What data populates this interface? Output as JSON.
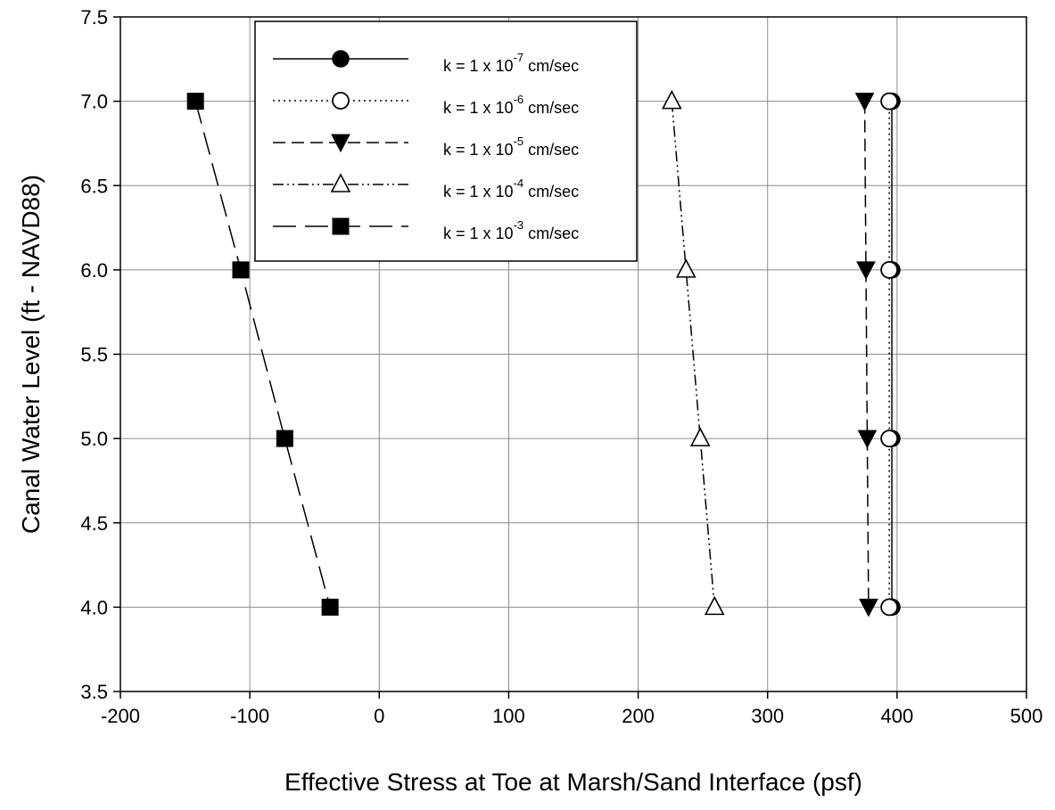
{
  "chart_data": {
    "type": "line",
    "title": "",
    "xlabel": "Effective Stress at Toe at Marsh/Sand Interface (psf)",
    "ylabel": "Canal Water Level (ft - NAVD88)",
    "xlim": [
      -200,
      500
    ],
    "ylim": [
      3.5,
      7.5
    ],
    "xticks": [
      -200,
      -100,
      0,
      100,
      200,
      300,
      400,
      500
    ],
    "xtick_labels": [
      "-200",
      "-100",
      "0",
      "100",
      "200",
      "300",
      "400",
      "500"
    ],
    "yticks": [
      3.5,
      4.0,
      4.5,
      5.0,
      5.5,
      6.0,
      6.5,
      7.0,
      7.5
    ],
    "ytick_labels": [
      "3.5",
      "4.0",
      "4.5",
      "5.0",
      "5.5",
      "6.0",
      "6.5",
      "7.0",
      "7.5"
    ],
    "grid": true,
    "legend_position": "top-center",
    "series": [
      {
        "name_prefix": "k = 1 x 10",
        "name_exp": "-7",
        "name_suffix": " cm/sec",
        "marker": "filled-circle",
        "line": "solid",
        "color": "#000000",
        "points": [
          {
            "x": 396,
            "y": 7.0
          },
          {
            "x": 396,
            "y": 6.0
          },
          {
            "x": 396,
            "y": 5.0
          },
          {
            "x": 396,
            "y": 4.0
          }
        ]
      },
      {
        "name_prefix": "k = 1 x 10",
        "name_exp": "-6",
        "name_suffix": " cm/sec",
        "marker": "open-circle",
        "line": "dotted",
        "color": "#000000",
        "points": [
          {
            "x": 394,
            "y": 7.0
          },
          {
            "x": 394,
            "y": 6.0
          },
          {
            "x": 394,
            "y": 5.0
          },
          {
            "x": 394,
            "y": 4.0
          }
        ]
      },
      {
        "name_prefix": "k = 1 x 10",
        "name_exp": "-5",
        "name_suffix": " cm/sec",
        "marker": "filled-triangle-down",
        "line": "dashed",
        "color": "#000000",
        "points": [
          {
            "x": 375,
            "y": 7.0
          },
          {
            "x": 376,
            "y": 6.0
          },
          {
            "x": 377,
            "y": 5.0
          },
          {
            "x": 378,
            "y": 4.0
          }
        ]
      },
      {
        "name_prefix": "k = 1 x 10",
        "name_exp": "-4",
        "name_suffix": " cm/sec",
        "marker": "open-triangle-up",
        "line": "dash-dot-dot",
        "color": "#000000",
        "points": [
          {
            "x": 226,
            "y": 7.0
          },
          {
            "x": 237,
            "y": 6.0
          },
          {
            "x": 248,
            "y": 5.0
          },
          {
            "x": 259,
            "y": 4.0
          }
        ]
      },
      {
        "name_prefix": "k = 1 x 10",
        "name_exp": "-3",
        "name_suffix": " cm/sec",
        "marker": "filled-square",
        "line": "long-dash",
        "color": "#000000",
        "points": [
          {
            "x": -142,
            "y": 7.0
          },
          {
            "x": -107,
            "y": 6.0
          },
          {
            "x": -73,
            "y": 5.0
          },
          {
            "x": -38,
            "y": 4.0
          }
        ]
      }
    ]
  }
}
